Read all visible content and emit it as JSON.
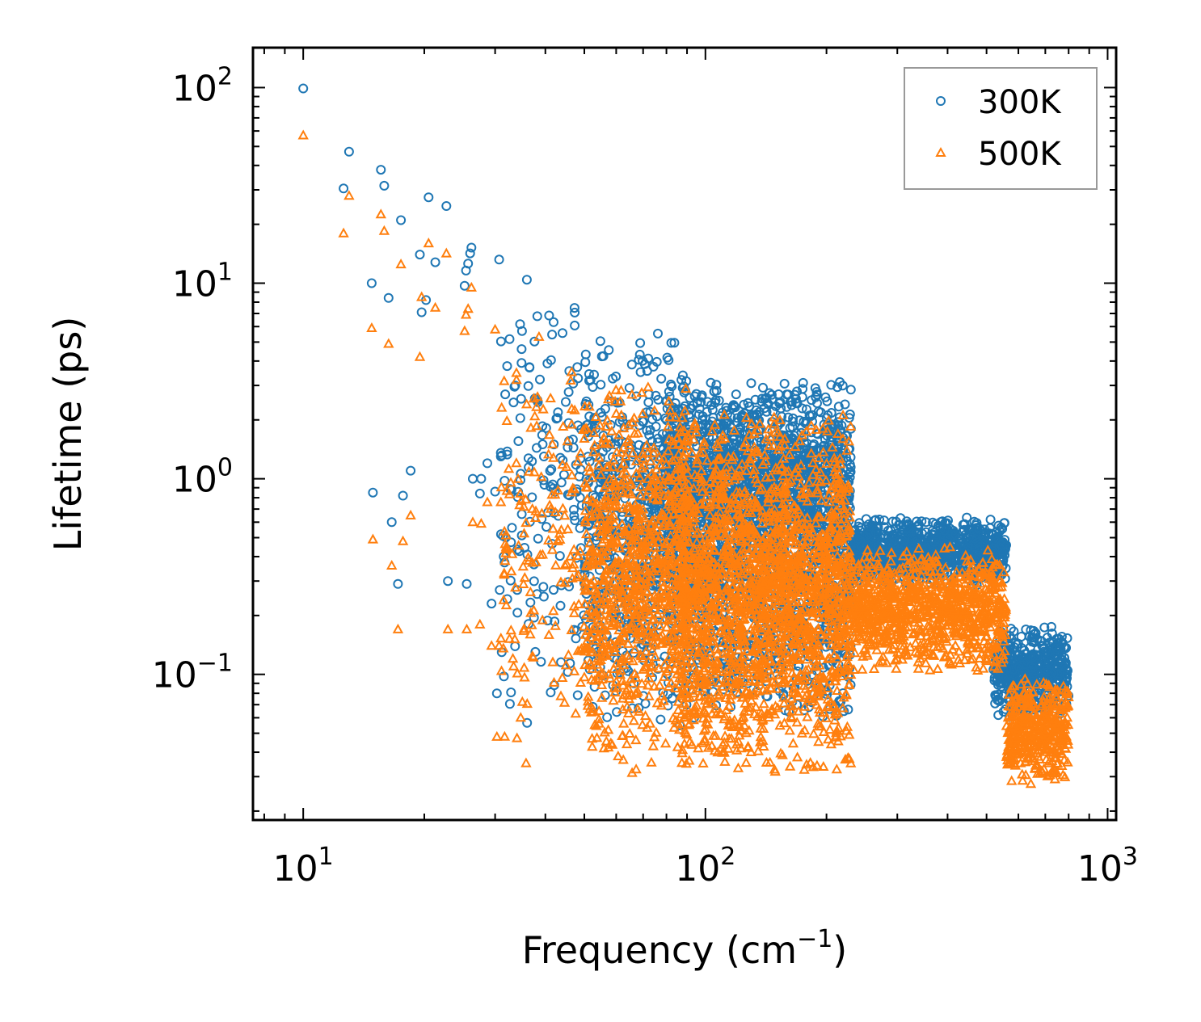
{
  "chart_data": {
    "type": "scatter",
    "xscale": "log",
    "yscale": "log",
    "xlim": [
      7.5,
      1050
    ],
    "ylim": [
      0.018,
      160
    ],
    "xlabel": {
      "text": "Frequency (cm",
      "sup": "−1",
      "tail": ")"
    },
    "ylabel": "Lifetime (ps)",
    "x_ticks": [
      {
        "value": 10,
        "base": "10",
        "exp": "1"
      },
      {
        "value": 100,
        "base": "10",
        "exp": "2"
      },
      {
        "value": 1000,
        "base": "10",
        "exp": "3"
      }
    ],
    "y_ticks": [
      {
        "value": 0.1,
        "base": "10",
        "exp": "−1"
      },
      {
        "value": 1,
        "base": "10",
        "exp": "0"
      },
      {
        "value": 10,
        "base": "10",
        "exp": "1"
      },
      {
        "value": 100,
        "base": "10",
        "exp": "2"
      }
    ],
    "legend_position": "top-right",
    "series": [
      {
        "name": "300K",
        "marker": "circle",
        "color": "#1f77b4",
        "points": [
          [
            10,
            99
          ],
          [
            12.6,
            30.5
          ],
          [
            13,
            47
          ],
          [
            14.8,
            10
          ],
          [
            14.9,
            0.85
          ],
          [
            15.6,
            38
          ],
          [
            15.9,
            31.5
          ],
          [
            16.3,
            8.4
          ],
          [
            16.6,
            0.6
          ],
          [
            17.2,
            0.29
          ],
          [
            17.5,
            21
          ],
          [
            17.7,
            0.82
          ],
          [
            18.5,
            1.1
          ],
          [
            19.5,
            14
          ],
          [
            19.7,
            7.1
          ],
          [
            20.2,
            8.2
          ],
          [
            20.5,
            27.5
          ],
          [
            21.3,
            12.8
          ],
          [
            22.7,
            24.8
          ],
          [
            22.9,
            0.3
          ],
          [
            25.2,
            9.7
          ],
          [
            25.4,
            11.6
          ],
          [
            25.5,
            0.29
          ],
          [
            25.7,
            12.6
          ],
          [
            26,
            14.2
          ],
          [
            26.2,
            15.2
          ],
          [
            26.4,
            1.0
          ],
          [
            27.5,
            0.84
          ],
          [
            27.7,
            1.0
          ],
          [
            28.7,
            1.2
          ],
          [
            29.4,
            0.23
          ],
          [
            30,
            0.86
          ],
          [
            30.3,
            0.08
          ],
          [
            30.7,
            13.2
          ],
          [
            30.8,
            0.27
          ],
          [
            31,
            1.3
          ],
          [
            31.5,
            0.4
          ]
        ],
        "bands": [
          {
            "x": [
              31,
              50
            ],
            "y": [
              0.055,
              11
            ],
            "n": 160
          },
          {
            "x": [
              50,
              90
            ],
            "y": [
              0.05,
              6
            ],
            "n": 700
          },
          {
            "x": [
              80,
              230
            ],
            "y": [
              0.3,
              3.4
            ],
            "n": 1400
          },
          {
            "x": [
              90,
              230
            ],
            "y": [
              0.05,
              1.4
            ],
            "n": 900
          },
          {
            "x": [
              230,
              560
            ],
            "y": [
              0.28,
              0.66
            ],
            "n": 900
          },
          {
            "x": [
              520,
              800
            ],
            "y": [
              0.06,
              0.18
            ],
            "n": 500
          }
        ]
      },
      {
        "name": "500K",
        "marker": "triangle",
        "color": "#ff7f0e",
        "points": [
          [
            10,
            57
          ],
          [
            12.6,
            18
          ],
          [
            13,
            28
          ],
          [
            14.8,
            5.9
          ],
          [
            14.9,
            0.49
          ],
          [
            15.6,
            22.5
          ],
          [
            15.9,
            18.5
          ],
          [
            16.3,
            4.9
          ],
          [
            16.6,
            0.36
          ],
          [
            17.2,
            0.17
          ],
          [
            17.5,
            12.5
          ],
          [
            17.7,
            0.48
          ],
          [
            18.5,
            0.65
          ],
          [
            19.5,
            4.2
          ],
          [
            19.7,
            8.5
          ],
          [
            20.5,
            16
          ],
          [
            21.3,
            7.5
          ],
          [
            22.7,
            14.2
          ],
          [
            22.9,
            0.17
          ],
          [
            25.2,
            5.7
          ],
          [
            25.4,
            6.9
          ],
          [
            25.5,
            0.17
          ],
          [
            25.7,
            7.4
          ],
          [
            26.2,
            9.5
          ],
          [
            26.4,
            0.6
          ],
          [
            27.5,
            0.18
          ],
          [
            27.7,
            0.59
          ],
          [
            28.7,
            0.76
          ],
          [
            29.4,
            0.14
          ],
          [
            30,
            5.8
          ],
          [
            30.3,
            0.048
          ],
          [
            30.7,
            0.14
          ],
          [
            31,
            0.76
          ],
          [
            31.5,
            0.24
          ]
        ],
        "bands": [
          {
            "x": [
              31,
              50
            ],
            "y": [
              0.033,
              6.5
            ],
            "n": 160
          },
          {
            "x": [
              50,
              90
            ],
            "y": [
              0.03,
              3.5
            ],
            "n": 900
          },
          {
            "x": [
              85,
              230
            ],
            "y": [
              0.028,
              2.4
            ],
            "n": 2000
          },
          {
            "x": [
              230,
              560
            ],
            "y": [
              0.1,
              0.45
            ],
            "n": 900
          },
          {
            "x": [
              560,
              800
            ],
            "y": [
              0.027,
              0.1
            ],
            "n": 400
          }
        ]
      }
    ]
  }
}
